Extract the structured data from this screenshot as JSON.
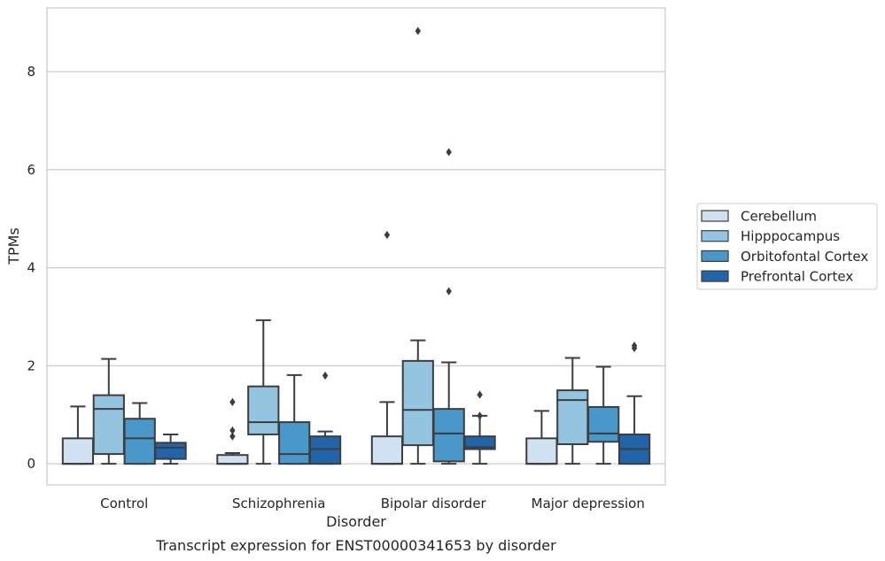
{
  "chart_data": {
    "type": "box",
    "caption": "Transcript expression for ENST00000341653 by disorder",
    "xlabel": "Disorder",
    "ylabel": "TPMs",
    "ylim": [
      -0.43,
      9.3
    ],
    "yticks": [
      0,
      2,
      4,
      6,
      8
    ],
    "grid": "horizontal",
    "legend_position": "right",
    "categories": [
      "Control",
      "Schizophrenia",
      "Bipolar disorder",
      "Major depression"
    ],
    "series": [
      {
        "name": "Cerebellum",
        "color": "#d0e1f2",
        "boxes": [
          {
            "whislo": 0,
            "q1": 0,
            "med": 0,
            "q3": 0.52,
            "whishi": 1.17,
            "fliers": []
          },
          {
            "whislo": 0,
            "q1": 0,
            "med": 0,
            "q3": 0.18,
            "whishi": 0.22,
            "fliers": [
              0.56,
              0.68,
              1.26
            ]
          },
          {
            "whislo": 0,
            "q1": 0,
            "med": 0,
            "q3": 0.56,
            "whishi": 1.26,
            "fliers": [
              4.67
            ]
          },
          {
            "whislo": 0,
            "q1": 0,
            "med": 0,
            "q3": 0.52,
            "whishi": 1.08,
            "fliers": []
          }
        ]
      },
      {
        "name": "Hipppocampus",
        "color": "#94c4df",
        "boxes": [
          {
            "whislo": 0,
            "q1": 0.2,
            "med": 1.12,
            "q3": 1.4,
            "whishi": 2.14,
            "fliers": []
          },
          {
            "whislo": 0,
            "q1": 0.6,
            "med": 0.85,
            "q3": 1.58,
            "whishi": 2.93,
            "fliers": []
          },
          {
            "whislo": 0,
            "q1": 0.38,
            "med": 1.1,
            "q3": 2.1,
            "whishi": 2.52,
            "fliers": [
              8.83
            ]
          },
          {
            "whislo": 0,
            "q1": 0.4,
            "med": 1.3,
            "q3": 1.5,
            "whishi": 2.16,
            "fliers": []
          }
        ]
      },
      {
        "name": "Orbitofontal Cortex",
        "color": "#4a98c9",
        "boxes": [
          {
            "whislo": 0,
            "q1": 0,
            "med": 0.52,
            "q3": 0.92,
            "whishi": 1.24,
            "fliers": []
          },
          {
            "whislo": 0,
            "q1": 0,
            "med": 0.2,
            "q3": 0.85,
            "whishi": 1.81,
            "fliers": []
          },
          {
            "whislo": 0,
            "q1": 0.05,
            "med": 0.62,
            "q3": 1.12,
            "whishi": 2.07,
            "fliers": [
              3.52,
              6.36
            ]
          },
          {
            "whislo": 0,
            "q1": 0.45,
            "med": 0.62,
            "q3": 1.16,
            "whishi": 1.98,
            "fliers": []
          }
        ]
      },
      {
        "name": "Prefrontal Cortex",
        "color": "#2264aa",
        "boxes": [
          {
            "whislo": 0,
            "q1": 0.1,
            "med": 0.33,
            "q3": 0.43,
            "whishi": 0.6,
            "fliers": []
          },
          {
            "whislo": 0,
            "q1": 0,
            "med": 0.3,
            "q3": 0.56,
            "whishi": 0.66,
            "fliers": [
              1.8
            ]
          },
          {
            "whislo": 0,
            "q1": 0.3,
            "med": 0.34,
            "q3": 0.56,
            "whishi": 0.98,
            "fliers": [
              0.98,
              1.41
            ]
          },
          {
            "whislo": 0,
            "q1": 0,
            "med": 0.3,
            "q3": 0.6,
            "whishi": 1.38,
            "fliers": [
              2.36,
              2.41
            ]
          }
        ]
      }
    ]
  }
}
